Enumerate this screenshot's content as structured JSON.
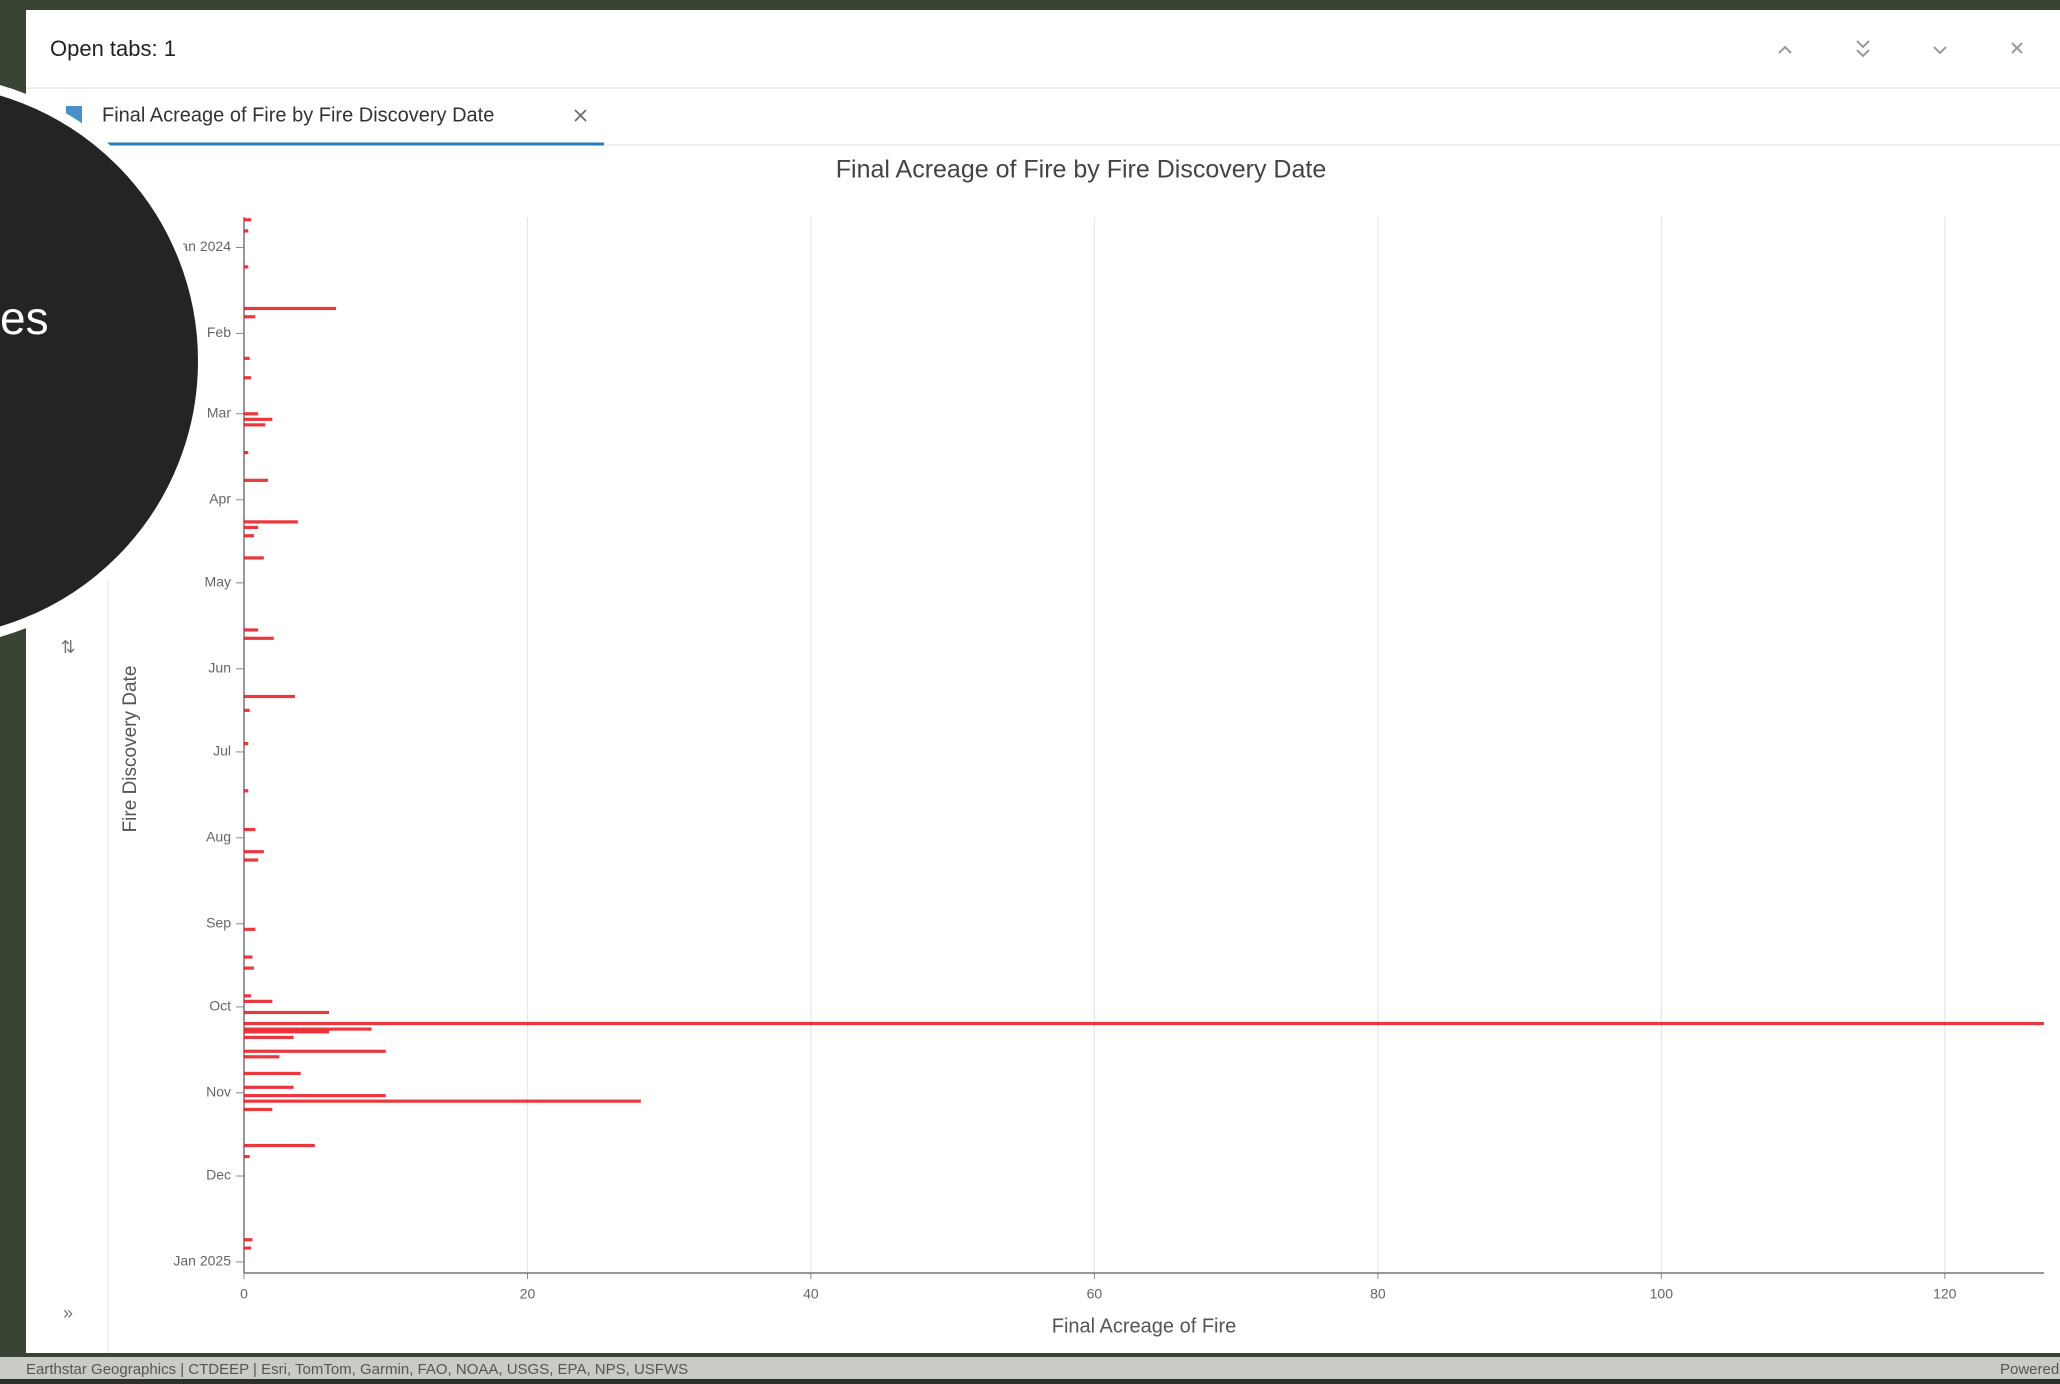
{
  "header": {
    "title": "Open tabs: 1"
  },
  "tab": {
    "label": "Final Acreage of Fire by Fire Discovery Date"
  },
  "overlay": {
    "text": "es"
  },
  "footer": {
    "attribution": "Earthstar Geographics | CTDEEP | Esri, TomTom, Garmin, FAO, NOAA, USGS, EPA, NPS, USFWS",
    "powered": "Powered"
  },
  "chart_data": {
    "type": "bar",
    "orientation": "horizontal",
    "title": "Final Acreage of Fire by Fire Discovery Date",
    "x_label": "Final Acreage of Fire",
    "y_label": "Fire Discovery Date",
    "color": "#e8141c",
    "grid": true,
    "xlim": [
      0,
      127
    ],
    "xticks": [
      0,
      20,
      40,
      60,
      80,
      100,
      120
    ],
    "ylim": [
      "2023-12-21",
      "2025-01-05"
    ],
    "yticks": [
      {
        "value": "2024-01-01",
        "label": "Jan 2024"
      },
      {
        "value": "2024-02-01",
        "label": "Feb"
      },
      {
        "value": "2024-03-01",
        "label": "Mar"
      },
      {
        "value": "2024-04-01",
        "label": "Apr"
      },
      {
        "value": "2024-05-01",
        "label": "May"
      },
      {
        "value": "2024-06-01",
        "label": "Jun"
      },
      {
        "value": "2024-07-01",
        "label": "Jul"
      },
      {
        "value": "2024-08-01",
        "label": "Aug"
      },
      {
        "value": "2024-09-01",
        "label": "Sep"
      },
      {
        "value": "2024-10-01",
        "label": "Oct"
      },
      {
        "value": "2024-11-01",
        "label": "Nov"
      },
      {
        "value": "2024-12-01",
        "label": "Dec"
      },
      {
        "value": "2025-01-01",
        "label": "Jan 2025"
      }
    ],
    "y": [
      "2023-12-22",
      "2023-12-26",
      "2024-01-08",
      "2024-01-23",
      "2024-01-26",
      "2024-02-10",
      "2024-02-17",
      "2024-03-01",
      "2024-03-03",
      "2024-03-05",
      "2024-03-15",
      "2024-03-25",
      "2024-04-09",
      "2024-04-11",
      "2024-04-14",
      "2024-04-22",
      "2024-05-18",
      "2024-05-21",
      "2024-06-11",
      "2024-06-16",
      "2024-06-28",
      "2024-07-15",
      "2024-07-29",
      "2024-08-06",
      "2024-08-09",
      "2024-09-03",
      "2024-09-13",
      "2024-09-17",
      "2024-09-27",
      "2024-09-29",
      "2024-10-03",
      "2024-10-07",
      "2024-10-09",
      "2024-10-10",
      "2024-10-12",
      "2024-10-17",
      "2024-10-19",
      "2024-10-25",
      "2024-10-30",
      "2024-11-02",
      "2024-11-04",
      "2024-11-07",
      "2024-11-20",
      "2024-11-24",
      "2024-12-24",
      "2024-12-27"
    ],
    "values": [
      0.5,
      0.3,
      0.3,
      6.5,
      0.8,
      0.4,
      0.5,
      1.0,
      2.0,
      1.5,
      0.3,
      1.7,
      3.8,
      1.0,
      0.7,
      1.4,
      1.0,
      2.1,
      3.6,
      0.4,
      0.3,
      0.3,
      0.8,
      1.4,
      1.0,
      0.8,
      0.6,
      0.7,
      0.5,
      2.0,
      6.0,
      127,
      9.0,
      6.0,
      3.5,
      10.0,
      2.5,
      4.0,
      3.5,
      10.0,
      28.0,
      2.0,
      5.0,
      0.4,
      0.6,
      0.5
    ]
  }
}
